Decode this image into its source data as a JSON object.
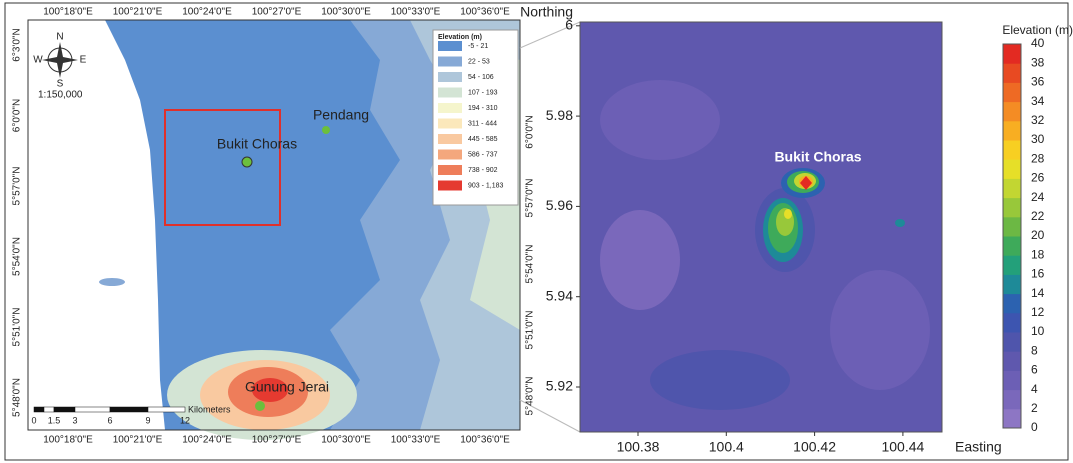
{
  "left_map": {
    "top_lon_labels": [
      "100°18'0\"E",
      "100°21'0\"E",
      "100°24'0\"E",
      "100°27'0\"E",
      "100°30'0\"E",
      "100°33'0\"E",
      "100°36'0\"E"
    ],
    "bottom_lon_labels": [
      "100°18'0\"E",
      "100°21'0\"E",
      "100°24'0\"E",
      "100°27'0\"E",
      "100°30'0\"E",
      "100°33'0\"E",
      "100°36'0\"E"
    ],
    "left_lat_labels": [
      "6°3'0\"N",
      "6°0'0\"N",
      "5°57'0\"N",
      "5°54'0\"N",
      "5°51'0\"N",
      "5°48'0\"N"
    ],
    "right_lat_labels": [
      "6°0'0\"N",
      "5°57'0\"N",
      "5°54'0\"N",
      "5°51'0\"N",
      "5°48'0\"N"
    ],
    "compass": {
      "north": "N",
      "south": "S",
      "west": "W",
      "east": "E"
    },
    "scale_ratio": "1:150,000",
    "scale_bar": {
      "ticks": [
        "0",
        "1.5",
        "3",
        "6",
        "9",
        "12"
      ],
      "unit": "Kilometers"
    },
    "legend": {
      "title": "Elevation (m)",
      "items": [
        {
          "label": "-5 - 21",
          "color": "#5b8fd0"
        },
        {
          "label": "22 - 53",
          "color": "#86a9d6"
        },
        {
          "label": "54 - 106",
          "color": "#aec6da"
        },
        {
          "label": "107 - 193",
          "color": "#d3e4d4"
        },
        {
          "label": "194 - 310",
          "color": "#f5f5cc"
        },
        {
          "label": "311 - 444",
          "color": "#fbe8bb"
        },
        {
          "label": "445 - 585",
          "color": "#f9c9a0"
        },
        {
          "label": "586 - 737",
          "color": "#f4a77d"
        },
        {
          "label": "738 - 902",
          "color": "#ee7d5a"
        },
        {
          "label": "903 - 1,183",
          "color": "#e53a30"
        }
      ]
    },
    "places": [
      "Bukit Choras",
      "Pendang",
      "Gunung Jerai"
    ]
  },
  "right_map": {
    "y_label": "Northing",
    "x_label": "Easting",
    "yticks": [
      "5.92",
      "5.94",
      "5.96",
      "5.98",
      "6"
    ],
    "xticks": [
      "100.38",
      "100.4",
      "100.42",
      "100.44"
    ],
    "place": "Bukit Choras",
    "colorbar": {
      "title": "Elevation (m)",
      "ticks": [
        "0",
        "2",
        "4",
        "6",
        "8",
        "10",
        "12",
        "14",
        "16",
        "18",
        "20",
        "22",
        "24",
        "26",
        "28",
        "30",
        "32",
        "34",
        "36",
        "38",
        "40"
      ],
      "colors": [
        "#8d76c4",
        "#7a68bb",
        "#6c5fb5",
        "#5f58ae",
        "#4f55ac",
        "#3d55b0",
        "#2c62b0",
        "#1e8a98",
        "#23a07a",
        "#3eaa5a",
        "#6cb844",
        "#98c83a",
        "#c2d632",
        "#e6df28",
        "#f7cf22",
        "#f8ae22",
        "#f48c24",
        "#ee6a24",
        "#e84a22",
        "#e32a22"
      ]
    }
  }
}
